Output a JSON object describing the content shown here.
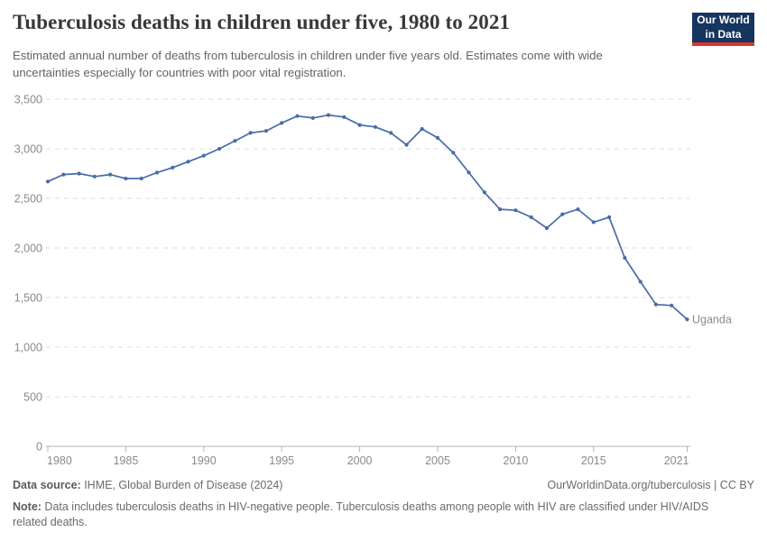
{
  "header": {
    "title": "Tuberculosis deaths in children under five, 1980 to 2021",
    "subtitle": "Estimated annual number of deaths from tuberculosis in children under five years old. Estimates come with wide uncertainties especially for countries with poor vital registration.",
    "logo": {
      "line1": "Our World",
      "line2": "in Data",
      "bg_color": "#163560",
      "stripe_color": "#d7382e"
    }
  },
  "chart_data": {
    "type": "line",
    "title": "Tuberculosis deaths in children under five, 1980 to 2021",
    "xlabel": "",
    "ylabel": "",
    "xlim": [
      1980,
      2021
    ],
    "ylim": [
      0,
      3500
    ],
    "x_ticks": [
      1980,
      1985,
      1990,
      1995,
      2000,
      2005,
      2010,
      2015,
      2021
    ],
    "y_ticks": [
      0,
      500,
      1000,
      1500,
      2000,
      2500,
      3000,
      3500
    ],
    "grid": "horizontal-dashed",
    "legend_position": "end-of-line-label",
    "series": [
      {
        "name": "Uganda",
        "color": "#4a6ba8",
        "x": [
          1980,
          1981,
          1982,
          1983,
          1984,
          1985,
          1986,
          1987,
          1988,
          1989,
          1990,
          1991,
          1992,
          1993,
          1994,
          1995,
          1996,
          1997,
          1998,
          1999,
          2000,
          2001,
          2002,
          2003,
          2004,
          2005,
          2006,
          2007,
          2008,
          2009,
          2010,
          2011,
          2012,
          2013,
          2014,
          2015,
          2016,
          2017,
          2018,
          2019,
          2020,
          2021
        ],
        "values": [
          2670,
          2740,
          2750,
          2720,
          2740,
          2700,
          2700,
          2760,
          2810,
          2870,
          2930,
          3000,
          3080,
          3160,
          3180,
          3260,
          3330,
          3310,
          3340,
          3320,
          3240,
          3220,
          3160,
          3040,
          3200,
          3110,
          2960,
          2760,
          2560,
          2390,
          2380,
          2310,
          2200,
          2340,
          2390,
          2260,
          2310,
          1900,
          1660,
          1430,
          1420,
          1280
        ]
      }
    ]
  },
  "footer": {
    "datasource_label": "Data source:",
    "datasource_text": " IHME, Global Burden of Disease (2024)",
    "link_text": "OurWorldinData.org/tuberculosis | CC BY",
    "note_label": "Note:",
    "note_text": " Data includes tuberculosis deaths in HIV-negative people. Tuberculosis deaths among people with HIV are classified under HIV/AIDS related deaths."
  }
}
